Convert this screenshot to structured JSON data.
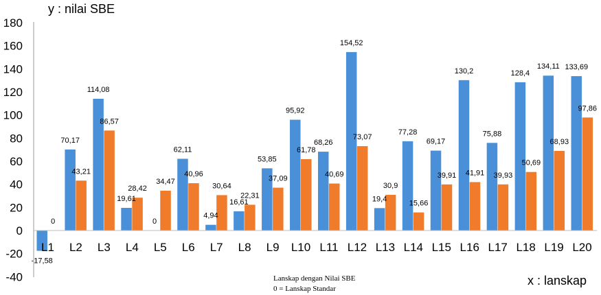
{
  "chart_data": {
    "type": "bar",
    "title": "",
    "ylabel": "y : nilai SBE",
    "xlabel": "x : lanskap",
    "annotations": [
      "Lanskap dengan Nilai SBE",
      "0 = Lanskap Standar"
    ],
    "ylim": [
      -40,
      180
    ],
    "yticks": [
      180,
      160,
      140,
      120,
      100,
      80,
      60,
      40,
      20,
      0,
      -20,
      -40
    ],
    "grid": false,
    "legend": "none",
    "categories": [
      "L1",
      "L2",
      "L3",
      "L4",
      "L5",
      "L6",
      "L7",
      "L8",
      "L9",
      "L10",
      "L11",
      "L12",
      "L13",
      "L14",
      "L15",
      "L16",
      "L17",
      "L18",
      "L19",
      "L20"
    ],
    "series": [
      {
        "color": "#4a90d9",
        "values": [
          -17.58,
          70.17,
          114.08,
          19.61,
          0,
          62.11,
          4.94,
          16.61,
          53.85,
          95.92,
          68.26,
          154.52,
          19.4,
          77.28,
          69.17,
          130.2,
          75.88,
          128.4,
          134.11,
          133.69
        ],
        "labels": [
          "-17,58",
          "70,17",
          "114,08",
          "19,61",
          "0",
          "62,11",
          "4,94",
          "16,61",
          "53,85",
          "95,92",
          "68,26",
          "154,52",
          "19,4",
          "77,28",
          "69,17",
          "130,2",
          "75,88",
          "128,4",
          "134,11",
          "133,69"
        ]
      },
      {
        "color": "#f07b2a",
        "values": [
          0,
          43.21,
          86.57,
          28.42,
          34.47,
          40.96,
          30.64,
          22.31,
          37.09,
          61.78,
          40.69,
          73.07,
          30.9,
          15.66,
          39.91,
          41.91,
          39.93,
          50.69,
          68.93,
          97.86
        ],
        "labels": [
          "0",
          "43,21",
          "86,57",
          "28,42",
          "34,47",
          "40,96",
          "30,64",
          "22,31",
          "37,09",
          "61,78",
          "40,69",
          "73,07",
          "30,9",
          "15,66",
          "39,91",
          "41,91",
          "39,93",
          "50,69",
          "68,93",
          "97,86"
        ]
      }
    ]
  }
}
